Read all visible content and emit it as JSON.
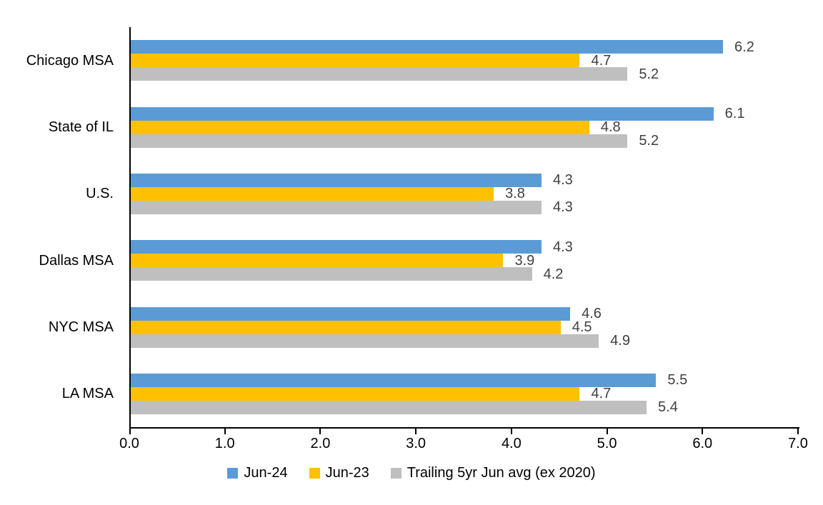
{
  "chart_data": {
    "type": "bar",
    "orientation": "horizontal",
    "title": "",
    "xlabel": "",
    "ylabel": "",
    "categories": [
      "Chicago MSA",
      "State of IL",
      "U.S.",
      "Dallas MSA",
      "NYC MSA",
      "LA MSA"
    ],
    "series": [
      {
        "name": "Jun-24",
        "color": "#5B9BD5",
        "values": [
          6.2,
          6.1,
          4.3,
          4.3,
          4.6,
          5.5
        ]
      },
      {
        "name": "Jun-23",
        "color": "#FFC000",
        "values": [
          4.7,
          4.8,
          3.8,
          3.9,
          4.5,
          4.7
        ]
      },
      {
        "name": "Trailing 5yr Jun avg (ex 2020)",
        "color": "#BFBFBF",
        "values": [
          5.2,
          5.2,
          4.3,
          4.2,
          4.9,
          5.4
        ]
      }
    ],
    "xlim": [
      0,
      7
    ],
    "x_tick_labels": [
      "0.0",
      "1.0",
      "2.0",
      "3.0",
      "4.0",
      "5.0",
      "6.0",
      "7.0"
    ],
    "grid": false,
    "data_labels_shown": true,
    "data_label_color": "#404040",
    "axis_color": "#000000",
    "legend_position": "bottom"
  }
}
